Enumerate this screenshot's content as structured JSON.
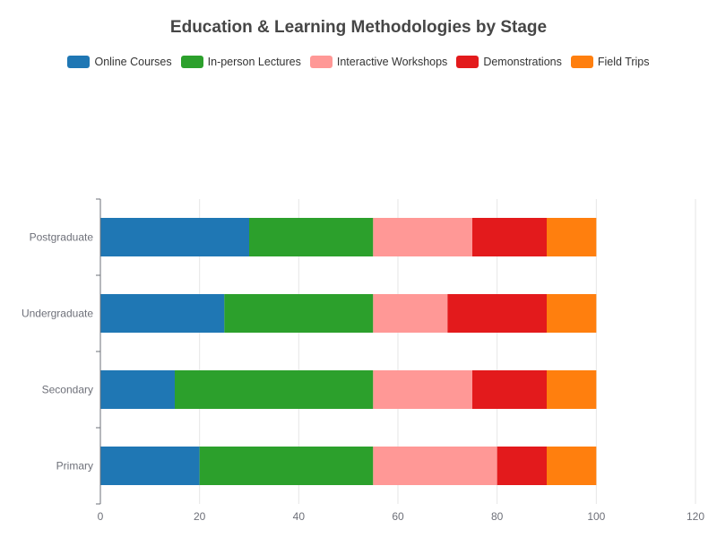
{
  "chart_data": {
    "type": "bar",
    "orientation": "horizontal",
    "stacked": true,
    "title": "Education & Learning Methodologies by Stage",
    "categories": [
      "Primary",
      "Secondary",
      "Undergraduate",
      "Postgraduate"
    ],
    "series": [
      {
        "name": "Online Courses",
        "color": "#1f77b4",
        "values": [
          20,
          15,
          25,
          30
        ]
      },
      {
        "name": "In-person Lectures",
        "color": "#2ca02c",
        "values": [
          35,
          40,
          30,
          25
        ]
      },
      {
        "name": "Interactive Workshops",
        "color": "#ff9896",
        "values": [
          25,
          20,
          15,
          20
        ]
      },
      {
        "name": "Demonstrations",
        "color": "#e31a1c",
        "values": [
          10,
          15,
          20,
          15
        ]
      },
      {
        "name": "Field Trips",
        "color": "#ff7f0e",
        "values": [
          10,
          10,
          10,
          10
        ]
      }
    ],
    "xlim": [
      0,
      120
    ],
    "xticks": [
      0,
      20,
      40,
      60,
      80,
      100,
      120
    ],
    "legend_position": "top",
    "grid": "vertical"
  }
}
